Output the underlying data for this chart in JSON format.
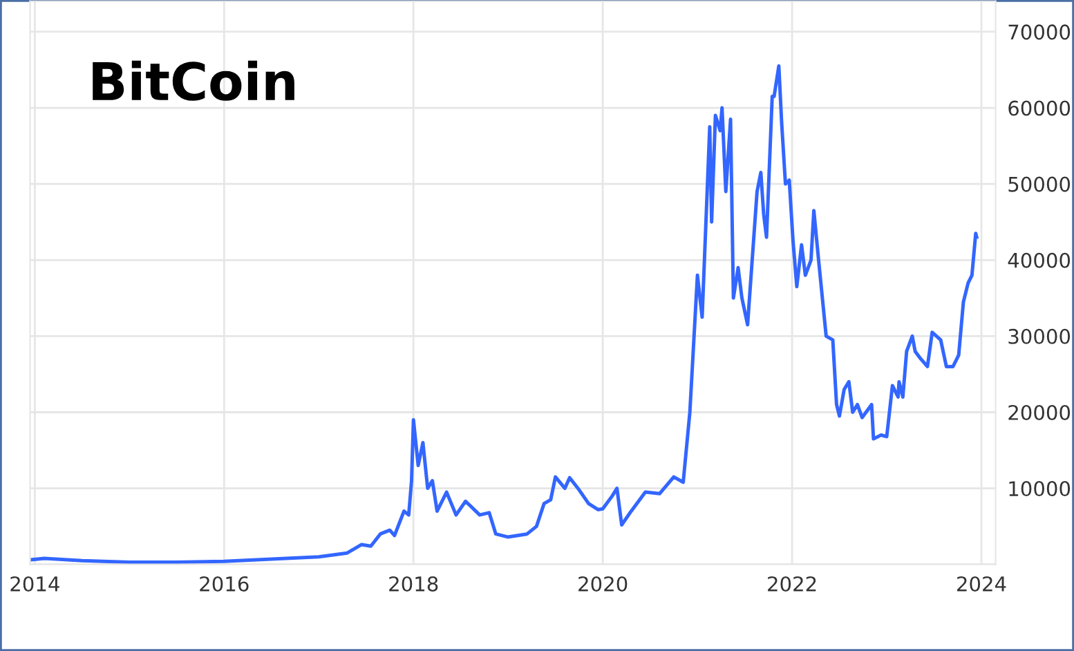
{
  "chart_data": {
    "type": "line",
    "title": "BitCoin",
    "grid": true,
    "marker": "none",
    "line_style": "solid",
    "xlim": [
      2013.95,
      2024.15
    ],
    "ylim": [
      0,
      74000
    ],
    "xticks": [
      2014,
      2016,
      2018,
      2020,
      2022,
      2024
    ],
    "yticks": [
      {
        "value": 0,
        "label": null
      },
      10000,
      20000,
      30000,
      40000,
      50000,
      60000,
      70000
    ],
    "series": [
      {
        "color": "#3366ff",
        "x": [
          2013.95,
          2014.1,
          2014.5,
          2015,
          2015.5,
          2016,
          2016.5,
          2017,
          2017.3,
          2017.45,
          2017.55,
          2017.65,
          2017.75,
          2017.8,
          2017.9,
          2017.95,
          2017.98,
          2018.0,
          2018.05,
          2018.1,
          2018.15,
          2018.2,
          2018.25,
          2018.35,
          2018.45,
          2018.55,
          2018.7,
          2018.8,
          2018.87,
          2019.0,
          2019.2,
          2019.3,
          2019.38,
          2019.45,
          2019.5,
          2019.6,
          2019.65,
          2019.75,
          2019.85,
          2019.95,
          2020.0,
          2020.1,
          2020.15,
          2020.2,
          2020.3,
          2020.45,
          2020.6,
          2020.75,
          2020.85,
          2020.92,
          2020.96,
          2021.0,
          2021.05,
          2021.13,
          2021.15,
          2021.19,
          2021.24,
          2021.26,
          2021.3,
          2021.35,
          2021.38,
          2021.43,
          2021.47,
          2021.53,
          2021.63,
          2021.67,
          2021.7,
          2021.73,
          2021.79,
          2021.81,
          2021.86,
          2021.89,
          2021.93,
          2021.97,
          2022.01,
          2022.05,
          2022.1,
          2022.14,
          2022.2,
          2022.23,
          2022.28,
          2022.36,
          2022.43,
          2022.47,
          2022.5,
          2022.55,
          2022.6,
          2022.64,
          2022.69,
          2022.74,
          2022.84,
          2022.86,
          2022.94,
          2023.0,
          2023.06,
          2023.12,
          2023.13,
          2023.17,
          2023.21,
          2023.27,
          2023.3,
          2023.36,
          2023.43,
          2023.48,
          2023.57,
          2023.63,
          2023.7,
          2023.76,
          2023.81,
          2023.86,
          2023.9,
          2023.94,
          2023.95
        ],
        "values": [
          600,
          800,
          500,
          300,
          300,
          400,
          700,
          1000,
          1500,
          2600,
          2400,
          4000,
          4500,
          3800,
          7000,
          6500,
          11000,
          19000,
          13000,
          16000,
          10000,
          11000,
          7000,
          9500,
          6500,
          8300,
          6500,
          6800,
          4000,
          3600,
          4000,
          5000,
          8000,
          8500,
          11500,
          10000,
          11400,
          9800,
          8000,
          7200,
          7300,
          9000,
          10000,
          5200,
          7000,
          9500,
          9300,
          11500,
          10800,
          20000,
          29000,
          38000,
          32500,
          57500,
          45000,
          59000,
          57000,
          60000,
          49000,
          58500,
          35000,
          39000,
          35000,
          31500,
          49000,
          51500,
          46000,
          43000,
          61500,
          61500,
          65500,
          58000,
          50000,
          50500,
          42500,
          36500,
          42000,
          38000,
          40000,
          46500,
          40000,
          30000,
          29500,
          21000,
          19500,
          23000,
          24000,
          20000,
          21000,
          19300,
          21000,
          16500,
          17000,
          16800,
          23500,
          22000,
          24000,
          22000,
          28000,
          30000,
          28000,
          27000,
          26000,
          30500,
          29500,
          26000,
          26000,
          27500,
          34500,
          37000,
          38000,
          43500,
          43000
        ]
      }
    ]
  }
}
